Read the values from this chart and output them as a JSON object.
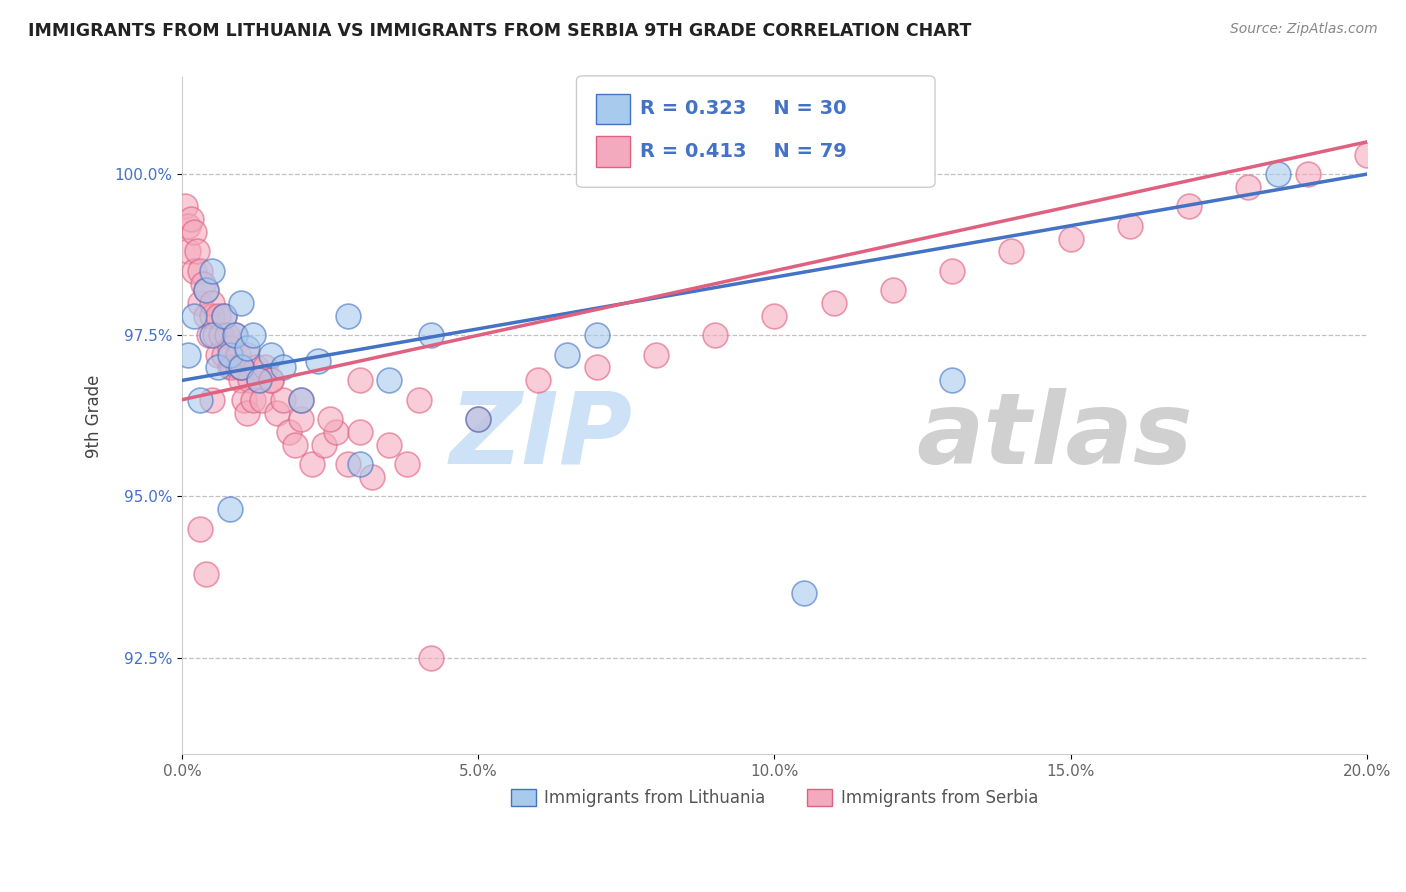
{
  "title": "IMMIGRANTS FROM LITHUANIA VS IMMIGRANTS FROM SERBIA 9TH GRADE CORRELATION CHART",
  "source": "Source: ZipAtlas.com",
  "ylabel": "9th Grade",
  "xlim": [
    0.0,
    20.0
  ],
  "ylim": [
    91.0,
    101.5
  ],
  "yticks": [
    92.5,
    95.0,
    97.5,
    100.0
  ],
  "ytick_labels": [
    "92.5%",
    "95.0%",
    "97.5%",
    "100.0%"
  ],
  "xticks": [
    0.0,
    5.0,
    10.0,
    15.0,
    20.0
  ],
  "xtick_labels": [
    "0.0%",
    "5.0%",
    "10.0%",
    "15.0%",
    "20.0%"
  ],
  "legend_labels": [
    "Immigrants from Lithuania",
    "Immigrants from Serbia"
  ],
  "legend_R": [
    0.323,
    0.413
  ],
  "legend_N": [
    30,
    79
  ],
  "color_blue": "#A8CAED",
  "color_pink": "#F4AABE",
  "color_blue_line": "#4472C4",
  "color_pink_line": "#E06080",
  "scatter_blue_x": [
    0.1,
    0.2,
    0.3,
    0.4,
    0.5,
    0.5,
    0.6,
    0.7,
    0.8,
    0.9,
    1.0,
    1.0,
    1.1,
    1.2,
    1.3,
    1.5,
    1.7,
    2.0,
    2.3,
    2.8,
    3.5,
    4.2,
    5.0,
    6.5,
    7.0,
    10.5,
    13.0,
    3.0,
    0.8,
    18.5
  ],
  "scatter_blue_y": [
    97.2,
    97.8,
    96.5,
    98.2,
    97.5,
    98.5,
    97.0,
    97.8,
    97.2,
    97.5,
    97.0,
    98.0,
    97.3,
    97.5,
    96.8,
    97.2,
    97.0,
    96.5,
    97.1,
    97.8,
    96.8,
    97.5,
    96.2,
    97.2,
    97.5,
    93.5,
    96.8,
    95.5,
    94.8,
    100.0
  ],
  "scatter_pink_x": [
    0.05,
    0.1,
    0.1,
    0.15,
    0.2,
    0.2,
    0.25,
    0.3,
    0.3,
    0.35,
    0.4,
    0.4,
    0.45,
    0.5,
    0.5,
    0.55,
    0.6,
    0.6,
    0.65,
    0.7,
    0.7,
    0.75,
    0.8,
    0.8,
    0.85,
    0.9,
    0.95,
    0.95,
    1.0,
    1.0,
    1.05,
    1.1,
    1.1,
    1.15,
    1.2,
    1.25,
    1.3,
    1.35,
    1.4,
    1.5,
    1.6,
    1.7,
    1.8,
    1.9,
    2.0,
    2.2,
    2.4,
    2.6,
    2.8,
    3.0,
    3.2,
    3.5,
    3.8,
    4.2,
    0.5,
    1.0,
    1.5,
    2.0,
    2.5,
    3.0,
    4.0,
    5.0,
    6.0,
    7.0,
    8.0,
    9.0,
    10.0,
    11.0,
    12.0,
    13.0,
    14.0,
    15.0,
    16.0,
    17.0,
    18.0,
    19.0,
    20.0,
    0.3,
    0.4
  ],
  "scatter_pink_y": [
    99.5,
    98.8,
    99.2,
    99.3,
    98.5,
    99.1,
    98.8,
    98.0,
    98.5,
    98.3,
    97.8,
    98.2,
    97.5,
    97.8,
    98.0,
    97.5,
    97.8,
    97.2,
    97.5,
    97.2,
    97.8,
    97.5,
    97.0,
    97.3,
    97.0,
    97.5,
    97.0,
    97.2,
    96.8,
    97.0,
    96.5,
    97.2,
    96.3,
    96.8,
    96.5,
    97.0,
    96.8,
    96.5,
    97.0,
    96.8,
    96.3,
    96.5,
    96.0,
    95.8,
    96.2,
    95.5,
    95.8,
    96.0,
    95.5,
    96.0,
    95.3,
    95.8,
    95.5,
    92.5,
    96.5,
    97.0,
    96.8,
    96.5,
    96.2,
    96.8,
    96.5,
    96.2,
    96.8,
    97.0,
    97.2,
    97.5,
    97.8,
    98.0,
    98.2,
    98.5,
    98.8,
    99.0,
    99.2,
    99.5,
    99.8,
    100.0,
    100.3,
    94.5,
    93.8
  ],
  "reg_blue_x0": 0.0,
  "reg_blue_y0": 96.8,
  "reg_blue_x1": 20.0,
  "reg_blue_y1": 100.0,
  "reg_pink_x0": 0.0,
  "reg_pink_y0": 96.5,
  "reg_pink_x1": 20.0,
  "reg_pink_y1": 100.5,
  "watermark_zip_color": "#C8DFF5",
  "watermark_atlas_color": "#AAAAAA"
}
